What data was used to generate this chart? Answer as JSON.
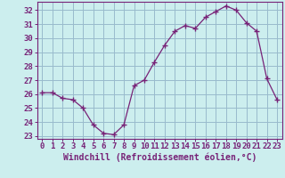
{
  "x": [
    0,
    1,
    2,
    3,
    4,
    5,
    6,
    7,
    8,
    9,
    10,
    11,
    12,
    13,
    14,
    15,
    16,
    17,
    18,
    19,
    20,
    21,
    22,
    23
  ],
  "y": [
    26.1,
    26.1,
    25.7,
    25.6,
    25.0,
    23.8,
    23.2,
    23.1,
    23.8,
    26.6,
    27.0,
    28.3,
    29.5,
    30.5,
    30.9,
    30.7,
    31.5,
    31.9,
    32.3,
    32.0,
    31.1,
    30.5,
    27.1,
    25.6
  ],
  "line_color": "#772277",
  "marker": "+",
  "marker_size": 4,
  "bg_color": "#cceeee",
  "grid_color": "#99bbcc",
  "xlabel": "Windchill (Refroidissement éolien,°C)",
  "xlabel_fontsize": 7,
  "tick_fontsize": 6.5,
  "ylim": [
    22.8,
    32.6
  ],
  "xlim": [
    -0.5,
    23.5
  ],
  "yticks": [
    23,
    24,
    25,
    26,
    27,
    28,
    29,
    30,
    31,
    32
  ],
  "xticks": [
    0,
    1,
    2,
    3,
    4,
    5,
    6,
    7,
    8,
    9,
    10,
    11,
    12,
    13,
    14,
    15,
    16,
    17,
    18,
    19,
    20,
    21,
    22,
    23
  ]
}
